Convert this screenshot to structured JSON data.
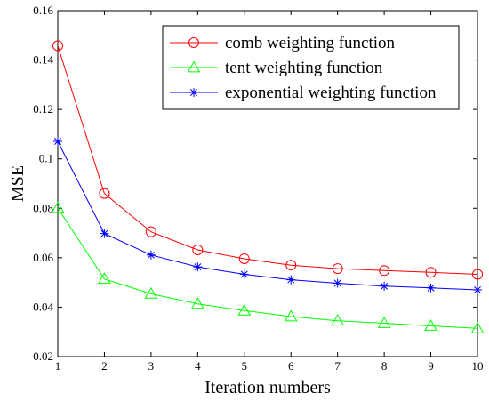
{
  "chart_data": {
    "type": "line",
    "title": "",
    "xlabel": "Iteration numbers",
    "ylabel": "MSE",
    "xlim": [
      1,
      10
    ],
    "ylim": [
      0.02,
      0.16
    ],
    "x": [
      1,
      2,
      3,
      4,
      5,
      6,
      7,
      8,
      9,
      10
    ],
    "xticks": [
      "1",
      "2",
      "3",
      "4",
      "5",
      "6",
      "7",
      "8",
      "9",
      "10"
    ],
    "yticks": [
      "0.02",
      "0.04",
      "0.06",
      "0.08",
      "0.1",
      "0.12",
      "0.14",
      "0.16"
    ],
    "grid": false,
    "legend_position": "top-right",
    "series": [
      {
        "name": "comb weighting function",
        "values": [
          0.1458,
          0.086,
          0.0705,
          0.0632,
          0.0596,
          0.057,
          0.0556,
          0.0548,
          0.0541,
          0.0533
        ],
        "color": "#ff0000",
        "marker": "circle"
      },
      {
        "name": "tent weighting function",
        "values": [
          0.0801,
          0.0514,
          0.0454,
          0.0413,
          0.0386,
          0.0362,
          0.0345,
          0.0335,
          0.0324,
          0.0314
        ],
        "color": "#00ff00",
        "marker": "triangle"
      },
      {
        "name": "exponential weighting function",
        "values": [
          0.1071,
          0.0698,
          0.0611,
          0.0563,
          0.0533,
          0.0511,
          0.0497,
          0.0485,
          0.0478,
          0.047
        ],
        "color": "#0000ff",
        "marker": "star"
      }
    ]
  }
}
